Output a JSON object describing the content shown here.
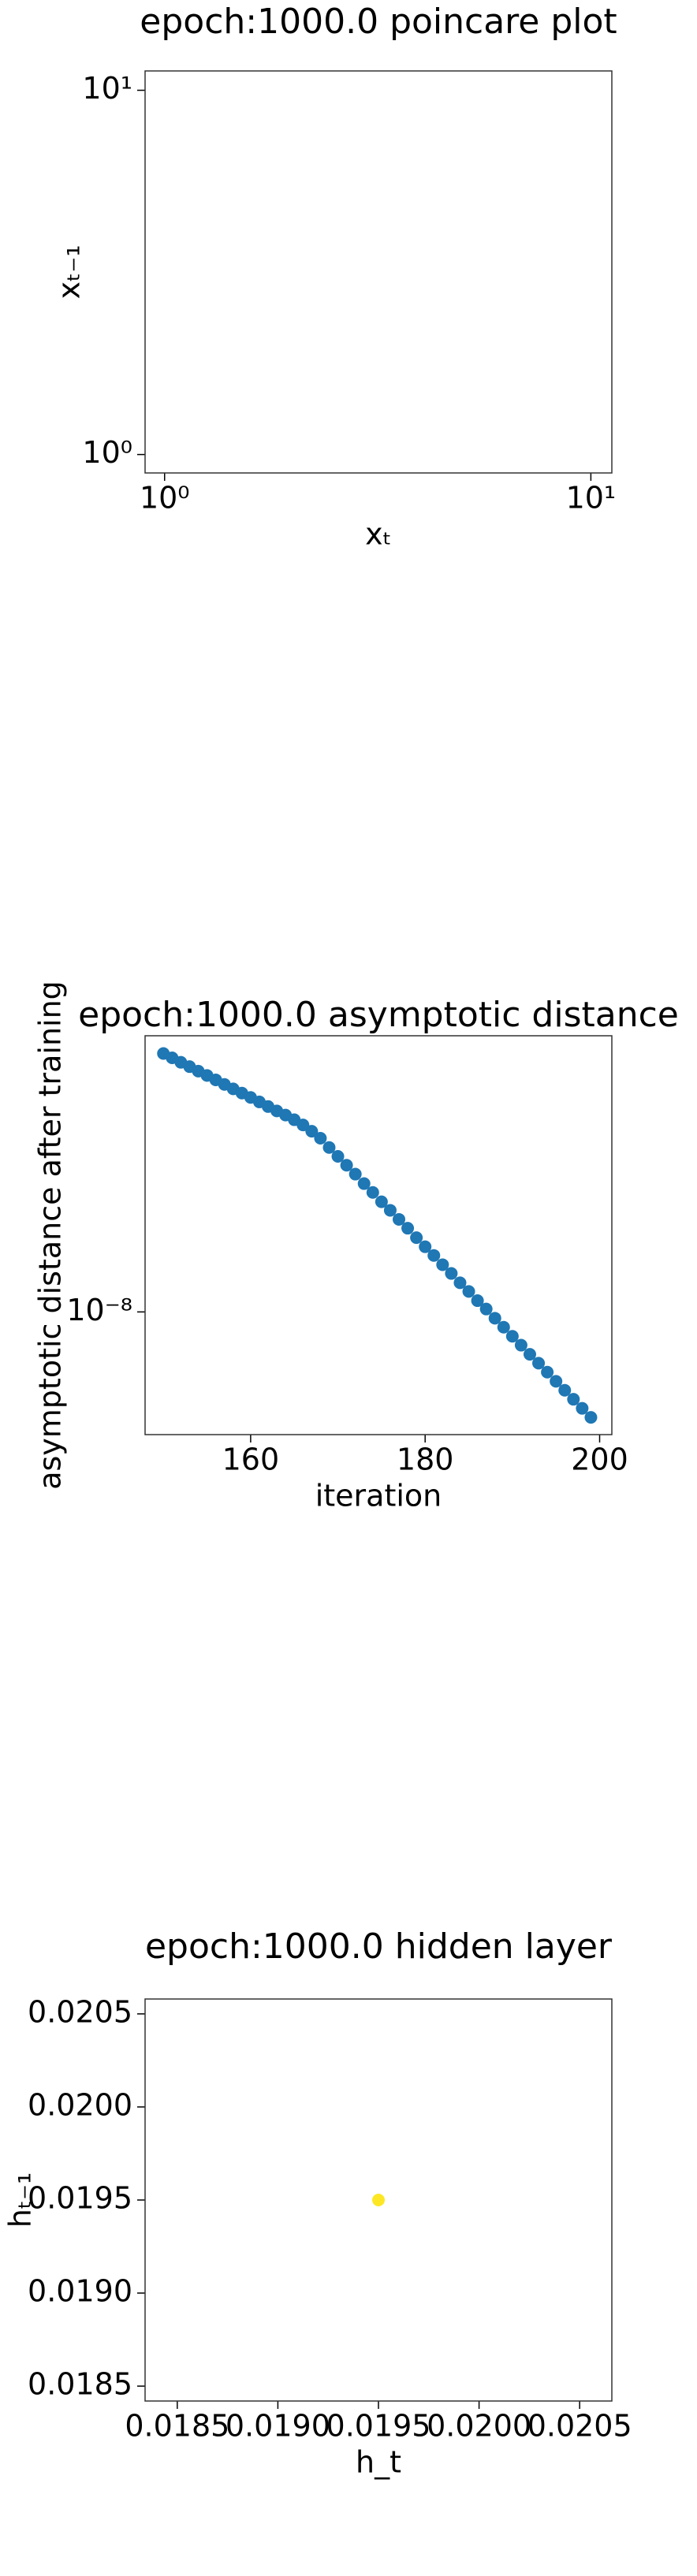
{
  "chart_data": [
    {
      "type": "scatter",
      "title": "epoch:1000.0 poincare plot",
      "x_label": "xₜ",
      "y_label": "xₜ₋₁",
      "xscale": "log",
      "yscale": "log",
      "xlim": [
        0.9,
        11.2
      ],
      "ylim": [
        0.89,
        11.3
      ],
      "xticks": [
        {
          "value": 1,
          "label": "10⁰"
        },
        {
          "value": 10,
          "label": "10¹"
        }
      ],
      "yticks": [
        {
          "value": 1,
          "label": "10⁰"
        },
        {
          "value": 10,
          "label": "10¹"
        }
      ],
      "x": [],
      "values": [],
      "color": "#1f77b4"
    },
    {
      "type": "scatter",
      "title": "epoch:1000.0 asymptotic distance",
      "x_label": "iteration",
      "y_label": "asymptotic distance after training",
      "yscale": "log",
      "xlim": [
        147.9,
        201.4
      ],
      "ylim": [
        4.33e-09,
        6.58e-08
      ],
      "xticks": [
        160,
        180,
        200
      ],
      "yticks": [
        {
          "value": 1e-08,
          "label": "10⁻⁸"
        }
      ],
      "x": [
        150,
        151,
        152,
        153,
        154,
        155,
        156,
        157,
        158,
        159,
        160,
        161,
        162,
        163,
        164,
        165,
        166,
        167,
        168,
        169,
        170,
        171,
        172,
        173,
        174,
        175,
        176,
        177,
        178,
        179,
        180,
        181,
        182,
        183,
        184,
        185,
        186,
        187,
        188,
        189,
        190,
        191,
        192,
        193,
        194,
        195,
        196,
        197,
        198,
        199
      ],
      "values": [
        5.83e-08,
        5.66e-08,
        5.49e-08,
        5.33e-08,
        5.17e-08,
        5.02e-08,
        4.87e-08,
        4.72e-08,
        4.58e-08,
        4.45e-08,
        4.32e-08,
        4.19e-08,
        4.06e-08,
        3.94e-08,
        3.83e-08,
        3.71e-08,
        3.58e-08,
        3.43e-08,
        3.27e-08,
        3.07e-08,
        2.89e-08,
        2.72e-08,
        2.56e-08,
        2.4e-08,
        2.26e-08,
        2.12e-08,
        2e-08,
        1.88e-08,
        1.77e-08,
        1.66e-08,
        1.56e-08,
        1.47e-08,
        1.38e-08,
        1.3e-08,
        1.22e-08,
        1.15e-08,
        1.08e-08,
        1.02e-08,
        9.58e-09,
        9.01e-09,
        8.47e-09,
        7.97e-09,
        7.49e-09,
        7.05e-09,
        6.63e-09,
        6.23e-09,
        5.86e-09,
        5.51e-09,
        5.18e-09,
        4.87e-09
      ],
      "color": "#1f77b4"
    },
    {
      "type": "scatter",
      "title": "epoch:1000.0 hidden layer",
      "x_label": "h_t",
      "y_label": "hₜ₋₁",
      "xlim": [
        0.01834,
        0.02066
      ],
      "ylim": [
        0.01842,
        0.02058
      ],
      "xticks": [
        0.0185,
        {
          "value": 0.019,
          "label": "0.0190"
        },
        0.0195,
        {
          "value": 0.02,
          "label": "0.0200"
        },
        0.0205
      ],
      "yticks": [
        0.0185,
        {
          "value": 0.019,
          "label": "0.0190"
        },
        0.0195,
        {
          "value": 0.02,
          "label": "0.0200"
        },
        0.0205
      ],
      "x": [
        0.0195
      ],
      "values": [
        0.0195
      ],
      "color": "#fde725"
    }
  ]
}
